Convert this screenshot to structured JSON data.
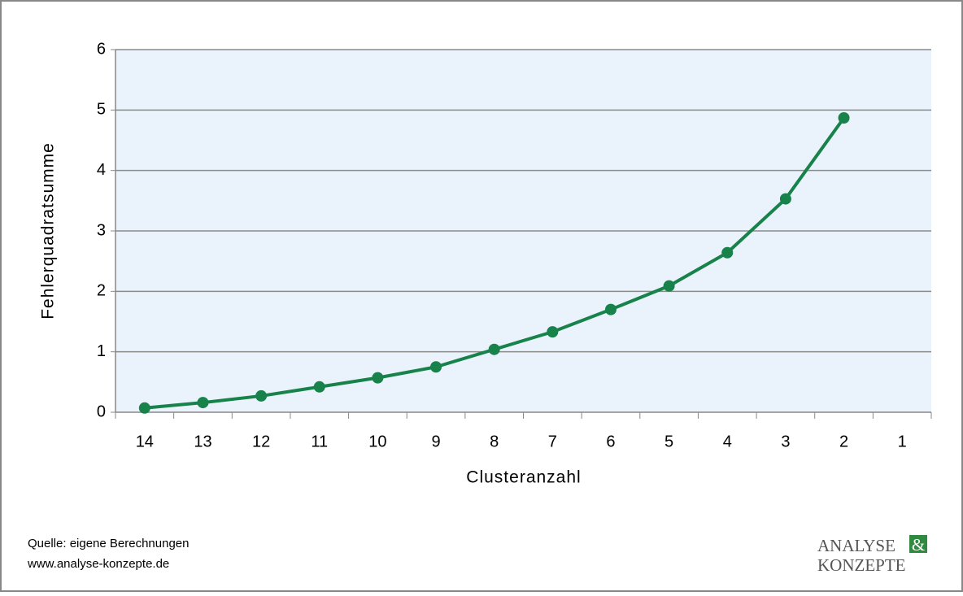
{
  "chart_data": {
    "type": "line",
    "x_label": "Clusteranzahl",
    "y_label": "Fehlerquadratsumme",
    "categories": [
      "14",
      "13",
      "12",
      "11",
      "10",
      "9",
      "8",
      "7",
      "6",
      "5",
      "4",
      "3",
      "2",
      "1"
    ],
    "values": [
      0.07,
      0.16,
      0.27,
      0.42,
      0.57,
      0.75,
      1.04,
      1.33,
      1.7,
      2.09,
      2.64,
      3.53,
      4.87,
      null
    ],
    "color": "#17824a",
    "ylim": [
      0,
      6
    ],
    "yticks": [
      0,
      1,
      2,
      3,
      4,
      5,
      6
    ],
    "grid": true
  },
  "footer": {
    "source": "Quelle: eigene Berechnungen",
    "url": "www.analyse-konzepte.de",
    "logo_top": "ANALYSE",
    "logo_amp": "&",
    "logo_bottom": "KONZEPTE"
  }
}
